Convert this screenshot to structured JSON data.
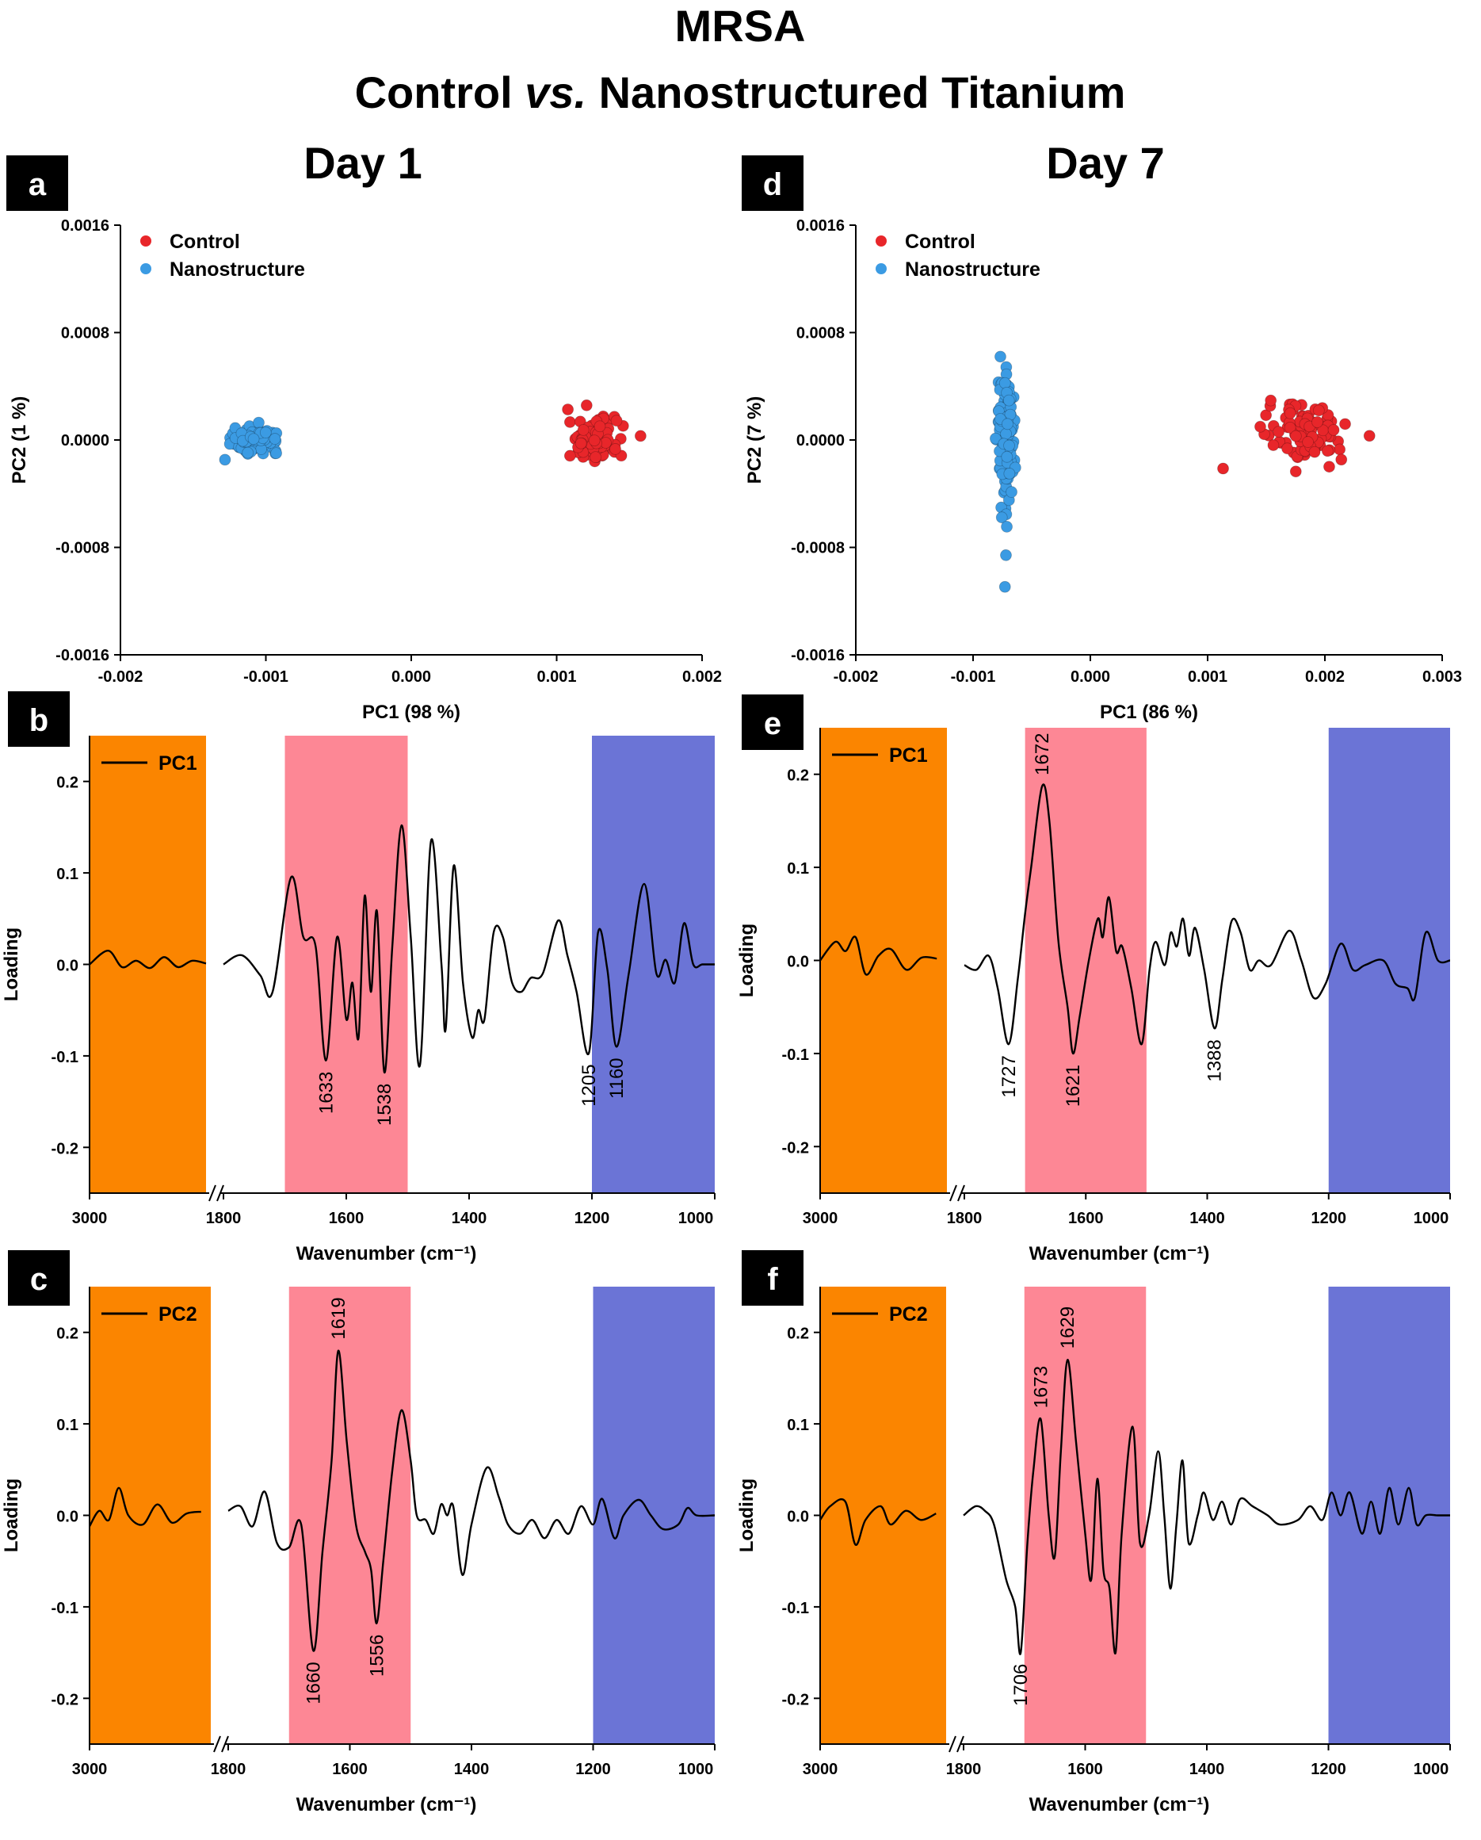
{
  "figure": {
    "title_line1": "MRSA",
    "title_line2_prefix": "Control ",
    "title_line2_italic": "vs.",
    "title_line2_suffix": " Nanostructured Titanium",
    "col1_title": "Day 1",
    "col2_title": "Day 7"
  },
  "colors": {
    "control": "#e8262a",
    "nanostructure": "#3b9be3",
    "band_orange": "#fb8500",
    "band_pink": "#fd8795",
    "band_blue": "#6b74d6"
  },
  "chart_data": [
    {
      "id": "a",
      "panel_label": "a",
      "type": "scatter",
      "xlabel": "PC1 (98 %)",
      "ylabel": "PC2 (1 %)",
      "xlim": [
        -0.002,
        0.002
      ],
      "ylim": [
        -0.0016,
        0.0016
      ],
      "xticks": [
        "-0.002",
        "-0.001",
        "0.000",
        "0.001",
        "0.002"
      ],
      "yticks": [
        "0.0016",
        "0.0008",
        "0.0000",
        "-0.0008",
        "-0.0016"
      ],
      "legend_position": "top-left",
      "series": [
        {
          "name": "Control",
          "color_key": "control",
          "count": 130,
          "center": [
            0.00125,
            0.0
          ],
          "spread": [
            0.00014,
            0.00013
          ]
        },
        {
          "name": "Nanostructure",
          "color_key": "nanostructure",
          "count": 130,
          "center": [
            -0.00107,
            0.0
          ],
          "spread": [
            0.00013,
            7e-05
          ]
        }
      ]
    },
    {
      "id": "d",
      "panel_label": "d",
      "type": "scatter",
      "xlabel": "PC1 (86 %)",
      "ylabel": "PC2 (7 %)",
      "xlim": [
        -0.002,
        0.003
      ],
      "ylim": [
        -0.0016,
        0.0016
      ],
      "xticks": [
        "-0.002",
        "-0.001",
        "0.000",
        "0.001",
        "0.002",
        "0.003"
      ],
      "yticks": [
        "0.0016",
        "0.0008",
        "0.0000",
        "-0.0008",
        "-0.0016"
      ],
      "legend_position": "top-left",
      "series": [
        {
          "name": "Control",
          "color_key": "control",
          "count": 100,
          "center": [
            0.00185,
            5e-05
          ],
          "spread": [
            0.00028,
            0.00018
          ]
        },
        {
          "name": "Nanostructure",
          "color_key": "nanostructure",
          "count": 160,
          "center": [
            -0.00072,
            0.0
          ],
          "spread": [
            6e-05,
            0.00045
          ]
        }
      ]
    },
    {
      "id": "b",
      "panel_label": "b",
      "type": "line",
      "xlabel": "Wavenumber (cm⁻¹)",
      "ylabel": "Loading",
      "legend": "PC1",
      "ylim": [
        -0.25,
        0.25
      ],
      "yticks": [
        "0.2",
        "0.1",
        "0.0",
        "-0.1",
        "-0.2"
      ],
      "xticks": [
        "3000",
        "1800",
        "1600",
        "1400",
        "1200",
        "1000"
      ],
      "bands": [
        {
          "from": 1700,
          "to": 1500,
          "color_key": "band_pink"
        },
        {
          "from": 1200,
          "to": 1000,
          "color_key": "band_blue"
        }
      ],
      "annotations": [
        {
          "x": 1633,
          "y": -0.105,
          "text": "1633"
        },
        {
          "x": 1538,
          "y": -0.118,
          "text": "1538"
        },
        {
          "x": 1205,
          "y": -0.097,
          "text": "1205"
        },
        {
          "x": 1160,
          "y": -0.09,
          "text": "1160"
        }
      ],
      "high_region": [
        [
          3000,
          0.0
        ],
        [
          2920,
          0.015
        ],
        [
          2860,
          -0.003
        ],
        [
          2800,
          0.004
        ],
        [
          2740,
          -0.004
        ],
        [
          2680,
          0.008
        ],
        [
          2620,
          -0.003
        ],
        [
          2560,
          0.004
        ],
        [
          2500,
          0.001
        ]
      ],
      "low_region": [
        [
          1800,
          0.0
        ],
        [
          1770,
          0.01
        ],
        [
          1740,
          -0.012
        ],
        [
          1720,
          -0.03
        ],
        [
          1690,
          0.095
        ],
        [
          1670,
          0.03
        ],
        [
          1650,
          0.02
        ],
        [
          1633,
          -0.105
        ],
        [
          1615,
          0.03
        ],
        [
          1600,
          -0.06
        ],
        [
          1590,
          -0.02
        ],
        [
          1580,
          -0.08
        ],
        [
          1570,
          0.075
        ],
        [
          1560,
          -0.03
        ],
        [
          1550,
          0.058
        ],
        [
          1538,
          -0.118
        ],
        [
          1525,
          0.02
        ],
        [
          1510,
          0.152
        ],
        [
          1495,
          0.03
        ],
        [
          1480,
          -0.11
        ],
        [
          1462,
          0.135
        ],
        [
          1445,
          0.0
        ],
        [
          1438,
          -0.07
        ],
        [
          1425,
          0.108
        ],
        [
          1410,
          -0.02
        ],
        [
          1395,
          -0.08
        ],
        [
          1385,
          -0.05
        ],
        [
          1375,
          -0.06
        ],
        [
          1360,
          0.035
        ],
        [
          1345,
          0.03
        ],
        [
          1330,
          -0.02
        ],
        [
          1315,
          -0.03
        ],
        [
          1300,
          -0.015
        ],
        [
          1280,
          -0.01
        ],
        [
          1255,
          0.048
        ],
        [
          1240,
          0.01
        ],
        [
          1225,
          -0.03
        ],
        [
          1205,
          -0.097
        ],
        [
          1190,
          0.035
        ],
        [
          1175,
          -0.005
        ],
        [
          1160,
          -0.09
        ],
        [
          1140,
          -0.01
        ],
        [
          1115,
          0.088
        ],
        [
          1095,
          -0.01
        ],
        [
          1080,
          0.005
        ],
        [
          1065,
          -0.02
        ],
        [
          1050,
          0.045
        ],
        [
          1035,
          0.0
        ],
        [
          1020,
          0.0
        ],
        [
          1000,
          0.0
        ]
      ]
    },
    {
      "id": "e",
      "panel_label": "e",
      "type": "line",
      "xlabel": "Wavenumber (cm⁻¹)",
      "ylabel": "Loading",
      "legend": "PC1",
      "ylim": [
        -0.25,
        0.25
      ],
      "yticks": [
        "0.2",
        "0.1",
        "0.0",
        "-0.1",
        "-0.2"
      ],
      "xticks": [
        "3000",
        "1800",
        "1600",
        "1400",
        "1200",
        "1000"
      ],
      "bands": [
        {
          "from": 1700,
          "to": 1500,
          "color_key": "band_pink"
        },
        {
          "from": 1200,
          "to": 1000,
          "color_key": "band_blue"
        }
      ],
      "annotations": [
        {
          "x": 1727,
          "y": -0.09,
          "text": "1727"
        },
        {
          "x": 1672,
          "y": 0.187,
          "text": "1672"
        },
        {
          "x": 1621,
          "y": -0.1,
          "text": "1621"
        },
        {
          "x": 1388,
          "y": -0.073,
          "text": "1388"
        }
      ],
      "high_region": [
        [
          3000,
          0.0
        ],
        [
          2940,
          0.02
        ],
        [
          2900,
          0.01
        ],
        [
          2860,
          0.025
        ],
        [
          2820,
          -0.015
        ],
        [
          2770,
          0.005
        ],
        [
          2720,
          0.012
        ],
        [
          2660,
          -0.01
        ],
        [
          2600,
          0.003
        ],
        [
          2540,
          0.002
        ]
      ],
      "low_region": [
        [
          1800,
          -0.005
        ],
        [
          1780,
          -0.01
        ],
        [
          1760,
          0.005
        ],
        [
          1745,
          -0.03
        ],
        [
          1727,
          -0.09
        ],
        [
          1712,
          -0.02
        ],
        [
          1700,
          0.05
        ],
        [
          1690,
          0.1
        ],
        [
          1672,
          0.187
        ],
        [
          1660,
          0.15
        ],
        [
          1645,
          0.02
        ],
        [
          1630,
          -0.05
        ],
        [
          1621,
          -0.1
        ],
        [
          1610,
          -0.06
        ],
        [
          1595,
          0.0
        ],
        [
          1580,
          0.045
        ],
        [
          1572,
          0.025
        ],
        [
          1562,
          0.068
        ],
        [
          1550,
          0.01
        ],
        [
          1540,
          0.015
        ],
        [
          1525,
          -0.03
        ],
        [
          1508,
          -0.09
        ],
        [
          1495,
          -0.01
        ],
        [
          1485,
          0.02
        ],
        [
          1470,
          -0.005
        ],
        [
          1460,
          0.03
        ],
        [
          1450,
          0.015
        ],
        [
          1440,
          0.045
        ],
        [
          1430,
          0.005
        ],
        [
          1420,
          0.035
        ],
        [
          1405,
          -0.01
        ],
        [
          1388,
          -0.073
        ],
        [
          1375,
          -0.02
        ],
        [
          1360,
          0.042
        ],
        [
          1345,
          0.03
        ],
        [
          1330,
          -0.01
        ],
        [
          1315,
          0.0
        ],
        [
          1295,
          -0.005
        ],
        [
          1265,
          0.032
        ],
        [
          1245,
          0.0
        ],
        [
          1225,
          -0.04
        ],
        [
          1205,
          -0.025
        ],
        [
          1180,
          0.018
        ],
        [
          1160,
          -0.01
        ],
        [
          1140,
          -0.005
        ],
        [
          1110,
          0.0
        ],
        [
          1090,
          -0.025
        ],
        [
          1070,
          -0.03
        ],
        [
          1058,
          -0.04
        ],
        [
          1040,
          0.03
        ],
        [
          1020,
          0.0
        ],
        [
          1000,
          0.0
        ]
      ]
    },
    {
      "id": "c",
      "panel_label": "c",
      "type": "line",
      "xlabel": "Wavenumber (cm⁻¹)",
      "ylabel": "Loading",
      "legend": "PC2",
      "ylim": [
        -0.25,
        0.25
      ],
      "yticks": [
        "0.2",
        "0.1",
        "0.0",
        "-0.1",
        "-0.2"
      ],
      "xticks": [
        "3000",
        "1800",
        "1600",
        "1400",
        "1200",
        "1000"
      ],
      "bands": [
        {
          "from": 1700,
          "to": 1500,
          "color_key": "band_pink"
        },
        {
          "from": 1200,
          "to": 1000,
          "color_key": "band_blue"
        }
      ],
      "annotations": [
        {
          "x": 1660,
          "y": -0.148,
          "text": "1660"
        },
        {
          "x": 1619,
          "y": 0.18,
          "text": "1619"
        },
        {
          "x": 1556,
          "y": -0.118,
          "text": "1556"
        }
      ],
      "high_region": [
        [
          3000,
          -0.012
        ],
        [
          2960,
          0.005
        ],
        [
          2920,
          -0.005
        ],
        [
          2880,
          0.03
        ],
        [
          2840,
          0.0
        ],
        [
          2780,
          -0.01
        ],
        [
          2720,
          0.012
        ],
        [
          2660,
          -0.008
        ],
        [
          2600,
          0.002
        ],
        [
          2540,
          0.004
        ]
      ],
      "low_region": [
        [
          1800,
          0.005
        ],
        [
          1780,
          0.01
        ],
        [
          1760,
          -0.012
        ],
        [
          1740,
          0.026
        ],
        [
          1720,
          -0.03
        ],
        [
          1700,
          -0.035
        ],
        [
          1680,
          -0.01
        ],
        [
          1660,
          -0.148
        ],
        [
          1645,
          -0.04
        ],
        [
          1630,
          0.06
        ],
        [
          1619,
          0.18
        ],
        [
          1605,
          0.08
        ],
        [
          1590,
          -0.01
        ],
        [
          1575,
          -0.04
        ],
        [
          1565,
          -0.06
        ],
        [
          1556,
          -0.118
        ],
        [
          1545,
          -0.05
        ],
        [
          1530,
          0.05
        ],
        [
          1515,
          0.115
        ],
        [
          1500,
          0.06
        ],
        [
          1490,
          0.0
        ],
        [
          1475,
          -0.005
        ],
        [
          1462,
          -0.02
        ],
        [
          1450,
          0.012
        ],
        [
          1440,
          0.0
        ],
        [
          1430,
          0.01
        ],
        [
          1415,
          -0.065
        ],
        [
          1400,
          -0.01
        ],
        [
          1375,
          0.052
        ],
        [
          1355,
          0.02
        ],
        [
          1340,
          -0.01
        ],
        [
          1320,
          -0.02
        ],
        [
          1300,
          -0.005
        ],
        [
          1280,
          -0.025
        ],
        [
          1260,
          -0.005
        ],
        [
          1240,
          -0.02
        ],
        [
          1220,
          0.01
        ],
        [
          1200,
          -0.01
        ],
        [
          1185,
          0.018
        ],
        [
          1165,
          -0.025
        ],
        [
          1150,
          0.0
        ],
        [
          1125,
          0.017
        ],
        [
          1105,
          0.0
        ],
        [
          1085,
          -0.015
        ],
        [
          1060,
          -0.01
        ],
        [
          1045,
          0.008
        ],
        [
          1030,
          0.0
        ],
        [
          1000,
          0.0
        ]
      ]
    },
    {
      "id": "f",
      "panel_label": "f",
      "type": "line",
      "xlabel": "Wavenumber (cm⁻¹)",
      "ylabel": "Loading",
      "legend": "PC2",
      "ylim": [
        -0.25,
        0.25
      ],
      "yticks": [
        "0.2",
        "0.1",
        "0.0",
        "-0.1",
        "-0.2"
      ],
      "xticks": [
        "3000",
        "1800",
        "1600",
        "1400",
        "1200",
        "1000"
      ],
      "bands": [
        {
          "from": 1700,
          "to": 1500,
          "color_key": "band_pink"
        },
        {
          "from": 1200,
          "to": 1000,
          "color_key": "band_blue"
        }
      ],
      "annotations": [
        {
          "x": 1706,
          "y": -0.15,
          "text": "1706"
        },
        {
          "x": 1673,
          "y": 0.105,
          "text": "1673"
        },
        {
          "x": 1629,
          "y": 0.17,
          "text": "1629"
        }
      ],
      "high_region": [
        [
          3000,
          -0.005
        ],
        [
          2960,
          0.01
        ],
        [
          2900,
          0.015
        ],
        [
          2860,
          -0.032
        ],
        [
          2820,
          -0.005
        ],
        [
          2760,
          0.01
        ],
        [
          2720,
          -0.01
        ],
        [
          2660,
          0.005
        ],
        [
          2600,
          -0.005
        ],
        [
          2540,
          0.002
        ]
      ],
      "low_region": [
        [
          1800,
          0.0
        ],
        [
          1780,
          0.01
        ],
        [
          1765,
          0.005
        ],
        [
          1750,
          -0.01
        ],
        [
          1730,
          -0.07
        ],
        [
          1715,
          -0.1
        ],
        [
          1706,
          -0.15
        ],
        [
          1695,
          -0.03
        ],
        [
          1685,
          0.05
        ],
        [
          1673,
          0.105
        ],
        [
          1660,
          0.0
        ],
        [
          1650,
          -0.045
        ],
        [
          1640,
          0.07
        ],
        [
          1629,
          0.17
        ],
        [
          1615,
          0.08
        ],
        [
          1600,
          -0.02
        ],
        [
          1590,
          -0.07
        ],
        [
          1580,
          0.04
        ],
        [
          1570,
          -0.06
        ],
        [
          1560,
          -0.08
        ],
        [
          1550,
          -0.15
        ],
        [
          1540,
          -0.02
        ],
        [
          1522,
          0.097
        ],
        [
          1510,
          -0.03
        ],
        [
          1495,
          0.0
        ],
        [
          1480,
          0.07
        ],
        [
          1470,
          0.0
        ],
        [
          1460,
          -0.08
        ],
        [
          1450,
          -0.01
        ],
        [
          1440,
          0.06
        ],
        [
          1430,
          -0.03
        ],
        [
          1415,
          0.0
        ],
        [
          1405,
          0.025
        ],
        [
          1390,
          -0.005
        ],
        [
          1375,
          0.015
        ],
        [
          1360,
          -0.01
        ],
        [
          1345,
          0.018
        ],
        [
          1325,
          0.01
        ],
        [
          1300,
          0.0
        ],
        [
          1280,
          -0.01
        ],
        [
          1250,
          -0.005
        ],
        [
          1230,
          0.01
        ],
        [
          1210,
          -0.005
        ],
        [
          1195,
          0.025
        ],
        [
          1180,
          0.0
        ],
        [
          1165,
          0.025
        ],
        [
          1145,
          -0.02
        ],
        [
          1130,
          0.015
        ],
        [
          1115,
          -0.02
        ],
        [
          1100,
          0.03
        ],
        [
          1085,
          -0.01
        ],
        [
          1068,
          0.03
        ],
        [
          1055,
          -0.01
        ],
        [
          1040,
          0.0
        ],
        [
          1020,
          0.0
        ],
        [
          1000,
          0.0
        ]
      ]
    }
  ]
}
